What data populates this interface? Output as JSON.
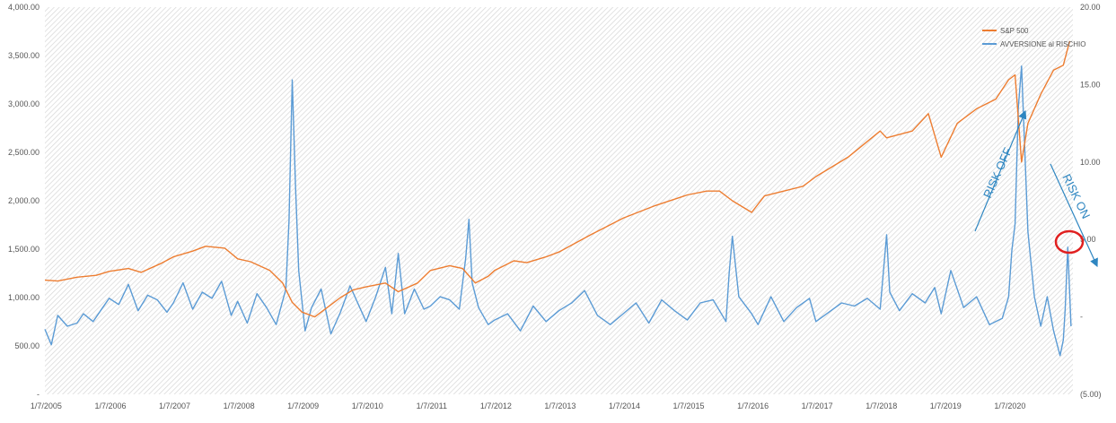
{
  "chart_data": {
    "type": "line",
    "title": "",
    "xlabel": "",
    "ylabel": "",
    "x_ticks": [
      "1/7/2005",
      "1/7/2006",
      "1/7/2007",
      "1/7/2008",
      "1/7/2009",
      "1/7/2010",
      "1/7/2011",
      "1/7/2012",
      "1/7/2013",
      "1/7/2014",
      "1/7/2015",
      "1/7/2016",
      "1/7/2017",
      "1/7/2018",
      "1/7/2019",
      "1/7/2020"
    ],
    "x_range": [
      "2005-01-07",
      "2020-12-31"
    ],
    "y_left_ticks": [
      "-",
      "500.00",
      "1,000.00",
      "1,500.00",
      "2,000.00",
      "2,500.00",
      "3,000.00",
      "3,500.00",
      "4,000.00"
    ],
    "y_left_range": [
      0,
      4000
    ],
    "y_right_ticks": [
      "(5.00)",
      "-",
      "5.00",
      "10.00",
      "15.00",
      "20.00"
    ],
    "y_right_range": [
      -5,
      20
    ],
    "grid": "dense hatched background",
    "legend_position": "top-right",
    "colors": {
      "sp500": "#ed7d31",
      "risk": "#5b9bd5",
      "annotation": "#2e86c1",
      "circle": "#e02020",
      "hatch": "#dcdcdc"
    },
    "series": [
      {
        "name": "S&P 500",
        "axis": "left",
        "x": [
          2005.0,
          2005.2,
          2005.5,
          2005.8,
          2006.0,
          2006.3,
          2006.5,
          2006.8,
          2007.0,
          2007.3,
          2007.5,
          2007.8,
          2008.0,
          2008.2,
          2008.5,
          2008.7,
          2008.85,
          2009.0,
          2009.2,
          2009.4,
          2009.6,
          2009.8,
          2010.0,
          2010.3,
          2010.5,
          2010.8,
          2011.0,
          2011.3,
          2011.5,
          2011.7,
          2011.9,
          2012.0,
          2012.3,
          2012.5,
          2012.8,
          2013.0,
          2013.5,
          2014.0,
          2014.5,
          2015.0,
          2015.3,
          2015.5,
          2015.7,
          2016.0,
          2016.2,
          2016.5,
          2016.8,
          2017.0,
          2017.5,
          2018.0,
          2018.1,
          2018.5,
          2018.75,
          2018.95,
          2019.2,
          2019.5,
          2019.8,
          2020.0,
          2020.1,
          2020.2,
          2020.3,
          2020.5,
          2020.7,
          2020.85,
          2020.95
        ],
        "y": [
          1180,
          1170,
          1210,
          1230,
          1270,
          1300,
          1260,
          1350,
          1420,
          1480,
          1530,
          1510,
          1400,
          1370,
          1280,
          1150,
          950,
          850,
          800,
          900,
          1000,
          1080,
          1110,
          1150,
          1060,
          1150,
          1280,
          1330,
          1300,
          1150,
          1220,
          1280,
          1380,
          1360,
          1420,
          1470,
          1650,
          1820,
          1950,
          2060,
          2100,
          2100,
          2000,
          1880,
          2050,
          2100,
          2150,
          2250,
          2450,
          2720,
          2650,
          2720,
          2900,
          2450,
          2800,
          2950,
          3050,
          3250,
          3300,
          2400,
          2800,
          3100,
          3350,
          3400,
          3650
        ]
      },
      {
        "name": "AVVERSIONE al RISCHIO",
        "axis": "right",
        "x": [
          2005.0,
          2005.1,
          2005.2,
          2005.35,
          2005.5,
          2005.6,
          2005.75,
          2005.9,
          2006.0,
          2006.15,
          2006.3,
          2006.45,
          2006.6,
          2006.75,
          2006.9,
          2007.0,
          2007.15,
          2007.3,
          2007.45,
          2007.6,
          2007.75,
          2007.9,
          2008.0,
          2008.15,
          2008.3,
          2008.45,
          2008.6,
          2008.75,
          2008.8,
          2008.85,
          2008.9,
          2008.95,
          2009.05,
          2009.15,
          2009.3,
          2009.45,
          2009.6,
          2009.75,
          2009.9,
          2010.0,
          2010.15,
          2010.3,
          2010.4,
          2010.5,
          2010.6,
          2010.75,
          2010.9,
          2011.0,
          2011.15,
          2011.3,
          2011.45,
          2011.55,
          2011.6,
          2011.65,
          2011.75,
          2011.9,
          2012.0,
          2012.2,
          2012.4,
          2012.6,
          2012.8,
          2013.0,
          2013.2,
          2013.4,
          2013.6,
          2013.8,
          2014.0,
          2014.2,
          2014.4,
          2014.6,
          2014.8,
          2015.0,
          2015.2,
          2015.4,
          2015.6,
          2015.65,
          2015.7,
          2015.8,
          2016.0,
          2016.1,
          2016.3,
          2016.5,
          2016.7,
          2016.9,
          2017.0,
          2017.2,
          2017.4,
          2017.6,
          2017.8,
          2018.0,
          2018.1,
          2018.15,
          2018.3,
          2018.5,
          2018.7,
          2018.85,
          2018.95,
          2019.1,
          2019.3,
          2019.5,
          2019.7,
          2019.9,
          2020.0,
          2020.05,
          2020.1,
          2020.15,
          2020.2,
          2020.3,
          2020.4,
          2020.5,
          2020.6,
          2020.7,
          2020.8,
          2020.85,
          2020.88,
          2020.92,
          2020.97
        ],
        "y": [
          -0.8,
          -1.8,
          0.1,
          -0.6,
          -0.4,
          0.2,
          -0.3,
          0.6,
          1.2,
          0.8,
          2.1,
          0.4,
          1.4,
          1.1,
          0.3,
          0.9,
          2.2,
          0.5,
          1.6,
          1.2,
          2.3,
          0.1,
          1.0,
          -0.4,
          1.5,
          0.6,
          -0.5,
          1.8,
          6.2,
          15.3,
          8.5,
          3.0,
          -0.9,
          0.6,
          1.8,
          -1.1,
          0.3,
          2.0,
          0.6,
          -0.3,
          1.3,
          3.2,
          0.2,
          4.1,
          0.2,
          1.8,
          0.5,
          0.7,
          1.3,
          1.1,
          0.5,
          3.8,
          6.3,
          2.2,
          0.6,
          -0.5,
          -0.2,
          0.2,
          -0.9,
          0.7,
          -0.3,
          0.4,
          0.9,
          1.7,
          0.1,
          -0.5,
          0.2,
          0.9,
          -0.4,
          1.1,
          0.4,
          -0.2,
          0.9,
          1.1,
          -0.3,
          2.8,
          5.2,
          1.3,
          0.2,
          -0.5,
          1.3,
          -0.3,
          0.6,
          1.2,
          -0.3,
          0.3,
          0.9,
          0.7,
          1.2,
          0.5,
          5.3,
          1.6,
          0.4,
          1.5,
          0.9,
          1.9,
          0.2,
          3.0,
          0.6,
          1.3,
          -0.5,
          -0.1,
          1.3,
          4.3,
          6.0,
          13.5,
          16.2,
          5.5,
          1.3,
          -0.6,
          1.3,
          -0.9,
          -2.5,
          -1.5,
          0.5,
          4.5,
          -0.6
        ]
      }
    ],
    "annotations": [
      {
        "text": "RISK OFF",
        "kind": "arrow-up"
      },
      {
        "text": "RISK ON",
        "kind": "arrow-down"
      },
      {
        "text": "",
        "kind": "circle"
      }
    ]
  }
}
